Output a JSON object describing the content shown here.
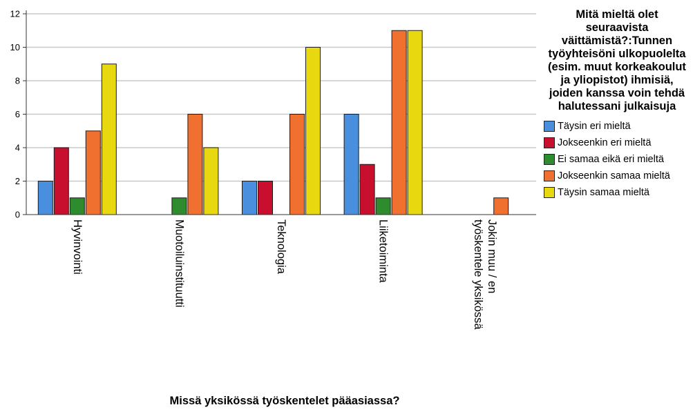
{
  "chart_data": {
    "type": "bar",
    "categories": [
      "Hyvinvointi",
      "Muotoiluinstituutti",
      "Teknologia",
      "Liiketoiminta",
      "Jokin muu / en työskentele yksikössä"
    ],
    "series": [
      {
        "name": "Täysin eri mieltä",
        "color": "#4a8fdd",
        "values": [
          2,
          0,
          2,
          6,
          0
        ]
      },
      {
        "name": "Jokseenkin eri mieltä",
        "color": "#c8102e",
        "values": [
          4,
          0,
          2,
          3,
          0
        ]
      },
      {
        "name": "Ei samaa eikä eri mieltä",
        "color": "#2e8b2e",
        "values": [
          1,
          1,
          0,
          1,
          0
        ]
      },
      {
        "name": "Jokseenkin samaa mieltä",
        "color": "#f07030",
        "values": [
          5,
          6,
          6,
          11,
          1
        ]
      },
      {
        "name": "Täysin samaa mieltä",
        "color": "#e8d810",
        "values": [
          9,
          4,
          10,
          11,
          0
        ]
      }
    ],
    "xlabel": "Missä yksikössä työskentelet pääasiassa?",
    "ylabel": "",
    "ylim": [
      0,
      12
    ],
    "yticks": [
      0,
      2,
      4,
      6,
      8,
      10,
      12
    ],
    "grid": true,
    "legend": {
      "title": "Mitä mieltä olet seuraavista väittämistä?:Tunnen työyhteisöni ulkopuolelta (esim. muut korkeakoulut ja yliopistot) ihmisiä, joiden kanssa voin tehdä halutessani julkaisuja",
      "placement": "right"
    }
  }
}
